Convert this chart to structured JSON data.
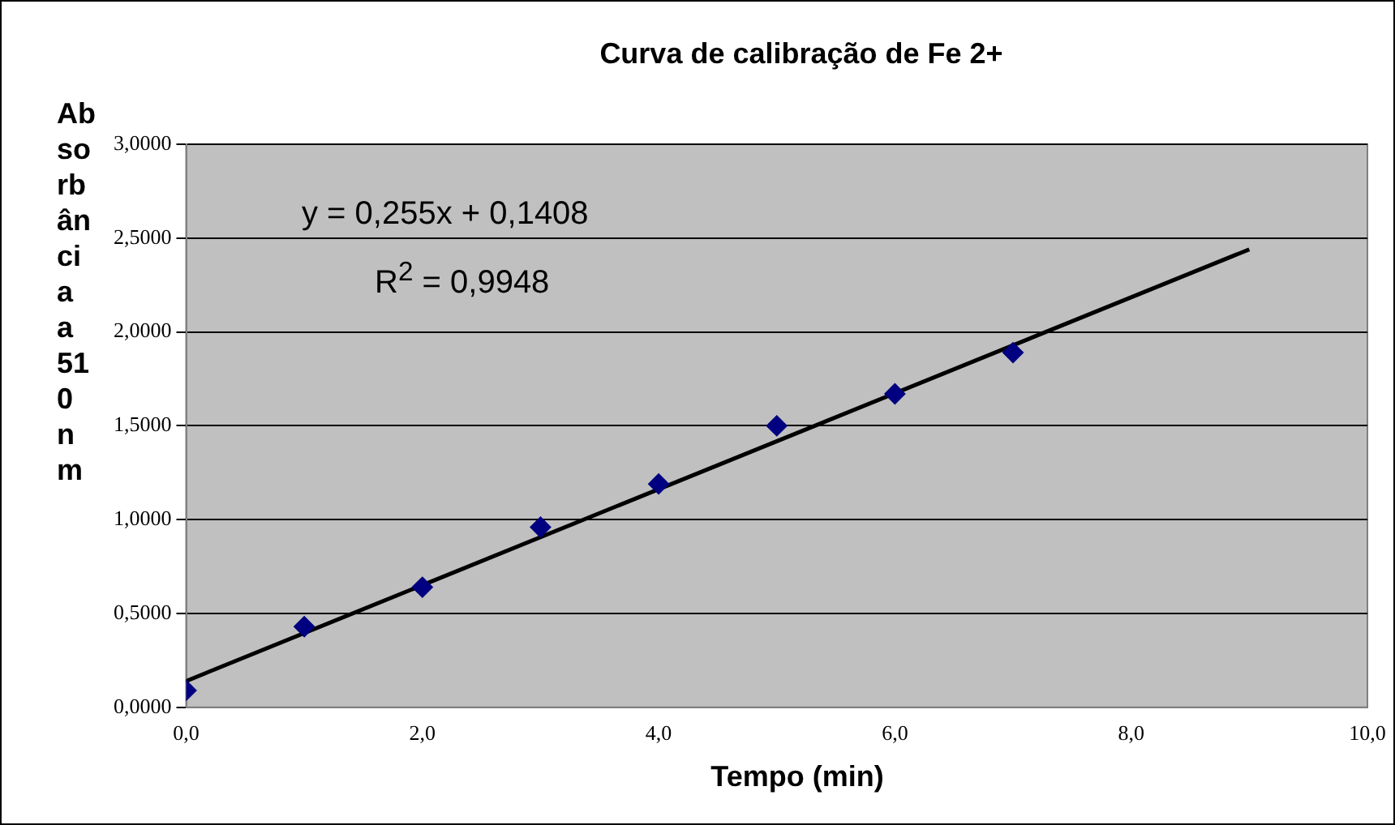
{
  "chart_data": {
    "type": "scatter",
    "title": "Curva de calibração de Fe 2+",
    "xlabel": "Tempo (min)",
    "ylabel": "Absorbância a 510 nm",
    "series": [
      {
        "color": "#000080",
        "x": [
          0,
          1,
          2,
          3,
          4,
          5,
          6,
          7
        ],
        "values": [
          0.09,
          0.43,
          0.64,
          0.96,
          1.19,
          1.5,
          1.67,
          1.89
        ],
        "marker": "diamond"
      },
      {
        "type": "line",
        "color": "#000000",
        "x": [
          0,
          9
        ],
        "values": [
          0.14,
          2.44
        ],
        "marker": "none",
        "line_style": "solid"
      }
    ],
    "annotations": [
      {
        "text": "y = 0,255x + 0,1408"
      },
      {
        "text": "R$^{2}$ = 0,9948"
      }
    ],
    "xlim": [
      0,
      10
    ],
    "ylim": [
      0,
      3
    ],
    "xticks": [
      {
        "value": 0,
        "label": "0,0"
      },
      {
        "value": 2,
        "label": "2,0"
      },
      {
        "value": 4,
        "label": "4,0"
      },
      {
        "value": 6,
        "label": "6,0"
      },
      {
        "value": 8,
        "label": "8,0"
      },
      {
        "value": 10,
        "label": "10,0"
      }
    ],
    "yticks": [
      {
        "value": 0,
        "label": "0,0000"
      },
      {
        "value": 0.5,
        "label": "0,5000"
      },
      {
        "value": 1,
        "label": "1,0000"
      },
      {
        "value": 1.5,
        "label": "1,5000"
      },
      {
        "value": 2,
        "label": "2,0000"
      },
      {
        "value": 2.5,
        "label": "2,5000"
      },
      {
        "value": 3,
        "label": "3,0000"
      }
    ],
    "grid": "y",
    "legend": false
  }
}
